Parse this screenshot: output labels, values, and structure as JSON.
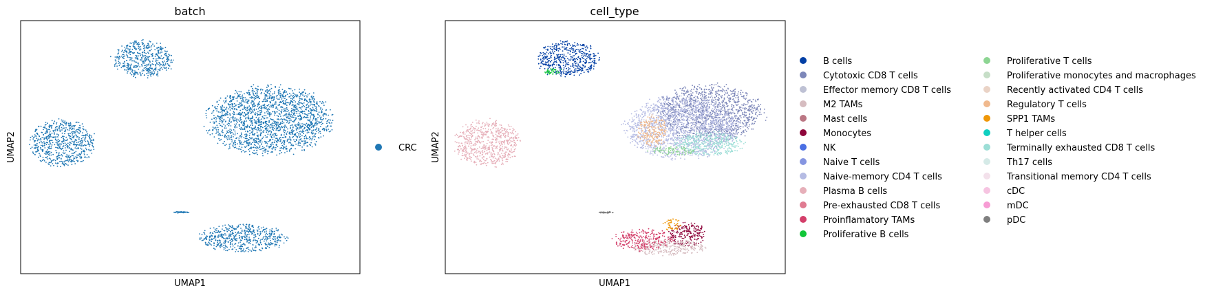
{
  "chart_data": [
    {
      "type": "scatter",
      "title": "batch",
      "xlabel": "UMAP1",
      "ylabel": "UMAP2",
      "grid": false,
      "ticks": false,
      "legend_placement": "right",
      "series": [
        {
          "name": "CRC",
          "color": "#1f77b4"
        }
      ],
      "clusters": [
        {
          "series": "CRC",
          "region": "upper-left elongated cluster",
          "center": [
            -3.5,
            6.5
          ],
          "spread": [
            1.6,
            1.2
          ]
        },
        {
          "series": "CRC",
          "region": "large central-right cluster",
          "center": [
            3.2,
            2.5
          ],
          "spread": [
            3.3,
            2.2
          ]
        },
        {
          "series": "CRC",
          "region": "left cluster",
          "center": [
            -7.8,
            1.0
          ],
          "spread": [
            1.7,
            1.5
          ]
        },
        {
          "series": "CRC",
          "region": "bottom cluster",
          "center": [
            1.8,
            -5.2
          ],
          "spread": [
            2.3,
            0.9
          ]
        },
        {
          "series": "CRC",
          "region": "small middle streak",
          "center": [
            -1.5,
            -3.5
          ],
          "spread": [
            0.4,
            0.05
          ]
        }
      ]
    },
    {
      "type": "scatter",
      "title": "cell_type",
      "xlabel": "UMAP1",
      "ylabel": "UMAP2",
      "grid": false,
      "ticks": false,
      "legend_placement": "right, two columns",
      "series": [
        {
          "name": "B cells",
          "color": "#023fa5"
        },
        {
          "name": "Cytotoxic CD8 T cells",
          "color": "#7d87b9"
        },
        {
          "name": "Effector memory CD8 T cells",
          "color": "#bec1d4"
        },
        {
          "name": "M2 TAMs",
          "color": "#d6bcc0"
        },
        {
          "name": "Mast cells",
          "color": "#bb7784"
        },
        {
          "name": "Monocytes",
          "color": "#8e063b"
        },
        {
          "name": "NK",
          "color": "#4a6fe3"
        },
        {
          "name": "Naive T cells",
          "color": "#8595e1"
        },
        {
          "name": "Naive-memory CD4 T cells",
          "color": "#b5bbe3"
        },
        {
          "name": "Plasma B cells",
          "color": "#e6afb9"
        },
        {
          "name": "Pre-exhausted CD8 T cells",
          "color": "#e07b91"
        },
        {
          "name": "Proinflamatory TAMs",
          "color": "#d33f6a"
        },
        {
          "name": "Proliferative B cells",
          "color": "#11c638"
        },
        {
          "name": "Proliferative T cells",
          "color": "#8dd593"
        },
        {
          "name": "Proliferative monocytes and macrophages",
          "color": "#c6dec7"
        },
        {
          "name": "Recently activated CD4 T cells",
          "color": "#ead3c6"
        },
        {
          "name": "Regulatory T cells",
          "color": "#f0b98d"
        },
        {
          "name": "SPP1 TAMs",
          "color": "#ef9708"
        },
        {
          "name": "T helper cells",
          "color": "#0fcfc0"
        },
        {
          "name": "Terminally exhausted CD8 T cells",
          "color": "#9cded6"
        },
        {
          "name": "Th17 cells",
          "color": "#d5eae7"
        },
        {
          "name": "Transitional memory CD4 T cells",
          "color": "#f3e1eb"
        },
        {
          "name": "cDC",
          "color": "#f6c4e1"
        },
        {
          "name": "mDC",
          "color": "#f79cd4"
        },
        {
          "name": "pDC",
          "color": "#7f7f7f"
        }
      ],
      "clusters": [
        {
          "series": "B cells",
          "region": "upper-left elongated cluster",
          "center": [
            -3.5,
            6.5
          ],
          "spread": [
            1.6,
            1.2
          ]
        },
        {
          "series": "Proliferative B cells",
          "region": "upper-left edge",
          "center": [
            -4.3,
            5.7
          ],
          "spread": [
            0.5,
            0.2
          ]
        },
        {
          "series": "Cytotoxic CD8 T cells",
          "region": "large central-right cluster",
          "center": [
            4.0,
            3.0
          ],
          "spread": [
            2.8,
            1.8
          ]
        },
        {
          "series": "Naive-memory CD4 T cells",
          "region": "large central-right cluster",
          "center": [
            2.5,
            2.0
          ],
          "spread": [
            3.0,
            2.0
          ]
        },
        {
          "series": "Regulatory T cells",
          "region": "central-left of main cluster",
          "center": [
            1.0,
            1.8
          ],
          "spread": [
            0.8,
            1.0
          ]
        },
        {
          "series": "Terminally exhausted CD8 T cells",
          "region": "lower-right of main cluster",
          "center": [
            4.0,
            1.0
          ],
          "spread": [
            1.8,
            0.8
          ]
        },
        {
          "series": "Proliferative T cells",
          "region": "bottom of main cluster",
          "center": [
            2.0,
            0.5
          ],
          "spread": [
            1.2,
            0.3
          ]
        },
        {
          "series": "Plasma B cells",
          "region": "left cluster",
          "center": [
            -7.8,
            1.0
          ],
          "spread": [
            1.7,
            1.5
          ]
        },
        {
          "series": "Proinflamatory TAMs",
          "region": "bottom cluster",
          "center": [
            0.5,
            -5.3
          ],
          "spread": [
            1.6,
            0.7
          ]
        },
        {
          "series": "Monocytes",
          "region": "bottom cluster right",
          "center": [
            2.8,
            -5.0
          ],
          "spread": [
            1.0,
            0.8
          ]
        },
        {
          "series": "SPP1 TAMs",
          "region": "bottom cluster top",
          "center": [
            2.0,
            -4.3
          ],
          "spread": [
            0.5,
            0.4
          ]
        },
        {
          "series": "M2 TAMs",
          "region": "bottom cluster lower",
          "center": [
            1.8,
            -5.8
          ],
          "spread": [
            2.0,
            0.5
          ]
        },
        {
          "series": "pDC",
          "region": "small middle streak",
          "center": [
            -1.5,
            -3.5
          ],
          "spread": [
            0.4,
            0.05
          ]
        }
      ]
    }
  ]
}
